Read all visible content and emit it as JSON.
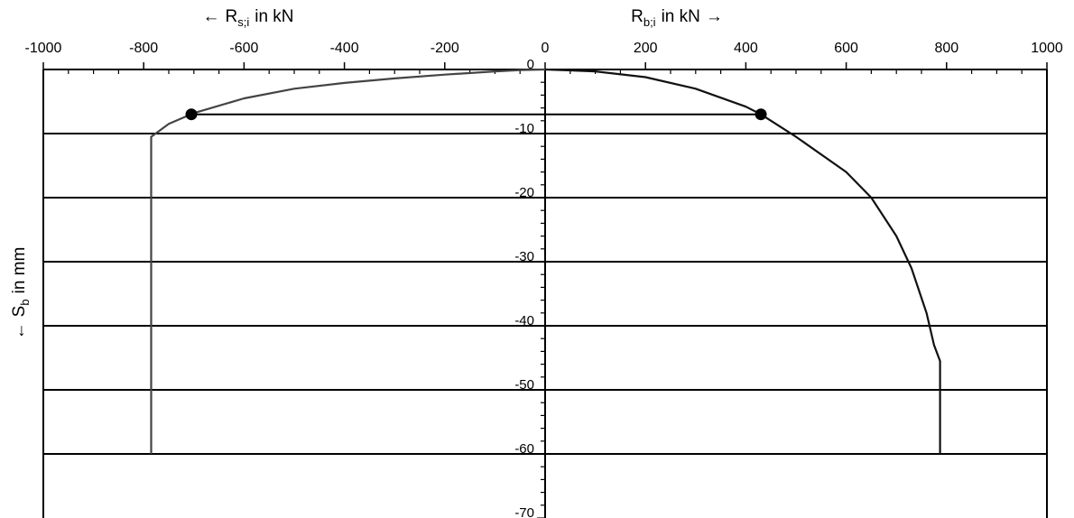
{
  "chart_data": {
    "type": "line",
    "top_axis": {
      "range": [
        -1000,
        1000
      ],
      "ticks": [
        "-1000",
        "-800",
        "-600",
        "-400",
        "-200",
        "0",
        "200",
        "400",
        "600",
        "800",
        "1000"
      ],
      "tick_values": [
        -1000,
        -800,
        -600,
        -400,
        -200,
        0,
        200,
        400,
        600,
        800,
        1000
      ],
      "minor_step": 50
    },
    "left_title": {
      "arrow": "←",
      "symbol": "R",
      "sub": "s;i",
      "unit": "in kN"
    },
    "right_title": {
      "symbol": "R",
      "sub": "b;i",
      "unit": "in kN",
      "arrow": "→"
    },
    "y_axis": {
      "range": [
        0,
        -70
      ],
      "ticks": [
        "0",
        "-10",
        "-20",
        "-30",
        "-40",
        "-50",
        "-60",
        "-70"
      ],
      "tick_values": [
        0,
        -10,
        -20,
        -30,
        -40,
        -50,
        -60,
        -70
      ],
      "minor_step": 2,
      "title": {
        "arrow": "←",
        "symbol": "S",
        "sub": "b",
        "unit": "in mm"
      }
    },
    "grid": {
      "horizontal": [
        -10,
        -20,
        -30,
        -40,
        -50,
        -60
      ],
      "vertical": false
    },
    "series": [
      {
        "values": [
          [
            0,
            0
          ],
          [
            -50,
            -0.1
          ],
          [
            -100,
            -0.3
          ],
          [
            -200,
            -0.8
          ],
          [
            -300,
            -1.4
          ],
          [
            -400,
            -2.1
          ],
          [
            -500,
            -3.0
          ],
          [
            -600,
            -4.5
          ],
          [
            -700,
            -6.8
          ],
          [
            -750,
            -8.5
          ],
          [
            -785,
            -10.5
          ],
          [
            -785,
            -60
          ]
        ],
        "color": "#444444"
      },
      {
        "values": [
          [
            0,
            0
          ],
          [
            100,
            -0.3
          ],
          [
            200,
            -1.2
          ],
          [
            300,
            -3.0
          ],
          [
            400,
            -5.8
          ],
          [
            430,
            -7
          ],
          [
            500,
            -10.5
          ],
          [
            600,
            -16
          ],
          [
            650,
            -20
          ],
          [
            700,
            -26
          ],
          [
            730,
            -31
          ],
          [
            760,
            -38
          ],
          [
            775,
            -43
          ],
          [
            787,
            -45.5
          ],
          [
            787,
            -60
          ]
        ],
        "color": "#111111"
      }
    ],
    "connector": {
      "y": -7,
      "x_from": -705,
      "x_to": 430
    },
    "markers": [
      [
        -705,
        -7
      ],
      [
        430,
        -7
      ]
    ]
  }
}
